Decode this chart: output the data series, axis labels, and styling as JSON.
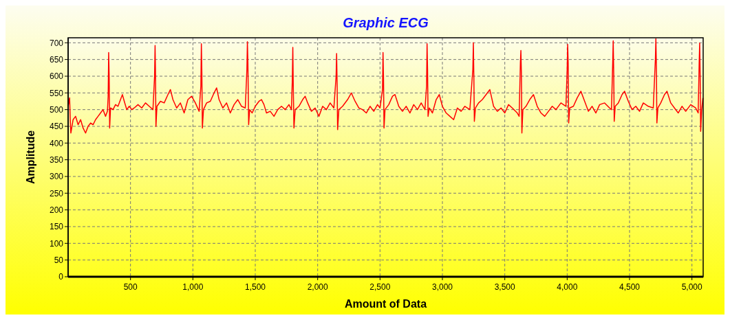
{
  "chart_data": {
    "type": "line",
    "title": "Graphic ECG",
    "xlabel": "Amount of Data",
    "ylabel": "Amplitude",
    "xlim": [
      0,
      5090
    ],
    "ylim": [
      0,
      715
    ],
    "xticks": [
      500,
      {
        "value": 1000,
        "label": "1,000"
      },
      {
        "value": 1500,
        "label": "1,500"
      },
      {
        "value": 2000,
        "label": "2,000"
      },
      {
        "value": 2500,
        "label": "2,500"
      },
      {
        "value": 3000,
        "label": "3,000"
      },
      {
        "value": 3500,
        "label": "3,500"
      },
      {
        "value": 4000,
        "label": "4,000"
      },
      {
        "value": 4500,
        "label": "4,500"
      },
      {
        "value": 5000,
        "label": "5,000"
      }
    ],
    "yticks": [
      0,
      50,
      100,
      150,
      200,
      250,
      300,
      350,
      400,
      450,
      500,
      550,
      600,
      650,
      700
    ],
    "grid": true,
    "marker": "none",
    "line_style": "solid",
    "series": [
      {
        "color": "#ff0000",
        "x": [
          0,
          12,
          17,
          22,
          40,
          60,
          80,
          100,
          120,
          140,
          160,
          180,
          200,
          220,
          240,
          260,
          280,
          300,
          315,
          321,
          325,
          329,
          333,
          340,
          360,
          380,
          400,
          420,
          435,
          450,
          470,
          490,
          510,
          530,
          560,
          590,
          620,
          650,
          680,
          693,
          697,
          700,
          704,
          712,
          740,
          770,
          800,
          820,
          840,
          870,
          900,
          930,
          960,
          990,
          1020,
          1050,
          1064,
          1068,
          1072,
          1076,
          1085,
          1110,
          1140,
          1170,
          1190,
          1210,
          1240,
          1270,
          1300,
          1330,
          1360,
          1390,
          1420,
          1433,
          1437,
          1441,
          1447,
          1455,
          1475,
          1500,
          1530,
          1550,
          1570,
          1590,
          1620,
          1650,
          1680,
          1710,
          1740,
          1770,
          1790,
          1797,
          1801,
          1805,
          1810,
          1820,
          1850,
          1880,
          1900,
          1920,
          1950,
          1980,
          2010,
          2040,
          2070,
          2100,
          2130,
          2148,
          2152,
          2156,
          2160,
          2170,
          2200,
          2240,
          2270,
          2300,
          2330,
          2360,
          2390,
          2420,
          2450,
          2480,
          2500,
          2520,
          2524,
          2528,
          2532,
          2540,
          2570,
          2600,
          2620,
          2650,
          2680,
          2710,
          2740,
          2770,
          2800,
          2830,
          2860,
          2873,
          2877,
          2881,
          2885,
          2895,
          2920,
          2950,
          2975,
          3000,
          3030,
          3060,
          3090,
          3120,
          3150,
          3180,
          3220,
          3244,
          3248,
          3252,
          3256,
          3265,
          3290,
          3320,
          3350,
          3380,
          3410,
          3440,
          3470,
          3500,
          3530,
          3560,
          3600,
          3615,
          3625,
          3629,
          3633,
          3637,
          3645,
          3670,
          3700,
          3730,
          3760,
          3790,
          3820,
          3850,
          3880,
          3910,
          3950,
          3990,
          4000,
          4004,
          4008,
          4012,
          4020,
          4050,
          4080,
          4110,
          4140,
          4170,
          4200,
          4230,
          4260,
          4300,
          4340,
          4355,
          4365,
          4369,
          4373,
          4377,
          4385,
          4410,
          4440,
          4460,
          4490,
          4520,
          4550,
          4580,
          4610,
          4650,
          4690,
          4707,
          4711,
          4715,
          4719,
          4727,
          4750,
          4780,
          4800,
          4830,
          4860,
          4890,
          4920,
          4950,
          4990,
          5030,
          5050,
          5058,
          5062,
          5066,
          5070,
          5078,
          5088
        ],
        "values": [
          510,
          535,
          470,
          430,
          470,
          480,
          455,
          470,
          445,
          430,
          450,
          460,
          455,
          470,
          480,
          490,
          500,
          480,
          495,
          540,
          671,
          600,
          445,
          505,
          500,
          515,
          510,
          530,
          545,
          525,
          500,
          510,
          500,
          505,
          515,
          505,
          520,
          510,
          500,
          600,
          692,
          620,
          450,
          510,
          525,
          520,
          545,
          560,
          530,
          505,
          520,
          490,
          530,
          540,
          520,
          495,
          570,
          697,
          610,
          445,
          500,
          520,
          525,
          550,
          565,
          530,
          505,
          520,
          490,
          515,
          530,
          510,
          505,
          620,
          703,
          640,
          455,
          500,
          490,
          510,
          525,
          530,
          515,
          490,
          495,
          480,
          500,
          510,
          500,
          515,
          500,
          590,
          686,
          560,
          445,
          500,
          510,
          530,
          540,
          520,
          495,
          505,
          480,
          510,
          500,
          520,
          505,
          600,
          668,
          580,
          440,
          500,
          510,
          530,
          550,
          525,
          505,
          500,
          490,
          510,
          495,
          515,
          505,
          560,
          671,
          590,
          445,
          500,
          515,
          540,
          545,
          510,
          495,
          510,
          490,
          515,
          500,
          520,
          500,
          570,
          697,
          620,
          480,
          505,
          490,
          530,
          545,
          510,
          490,
          480,
          470,
          505,
          495,
          510,
          500,
          620,
          700,
          600,
          465,
          505,
          520,
          530,
          545,
          560,
          510,
          495,
          505,
          490,
          515,
          505,
          490,
          480,
          640,
          677,
          610,
          430,
          500,
          510,
          530,
          545,
          510,
          490,
          480,
          495,
          510,
          500,
          520,
          510,
          620,
          695,
          640,
          460,
          505,
          510,
          535,
          555,
          525,
          495,
          510,
          490,
          515,
          520,
          505,
          500,
          640,
          706,
          610,
          465,
          510,
          520,
          545,
          555,
          525,
          500,
          510,
          495,
          520,
          510,
          505,
          650,
          712,
          630,
          460,
          505,
          520,
          545,
          555,
          520,
          505,
          490,
          510,
          495,
          515,
          505,
          490,
          640,
          699,
          600,
          435,
          500,
          535
        ]
      }
    ]
  }
}
